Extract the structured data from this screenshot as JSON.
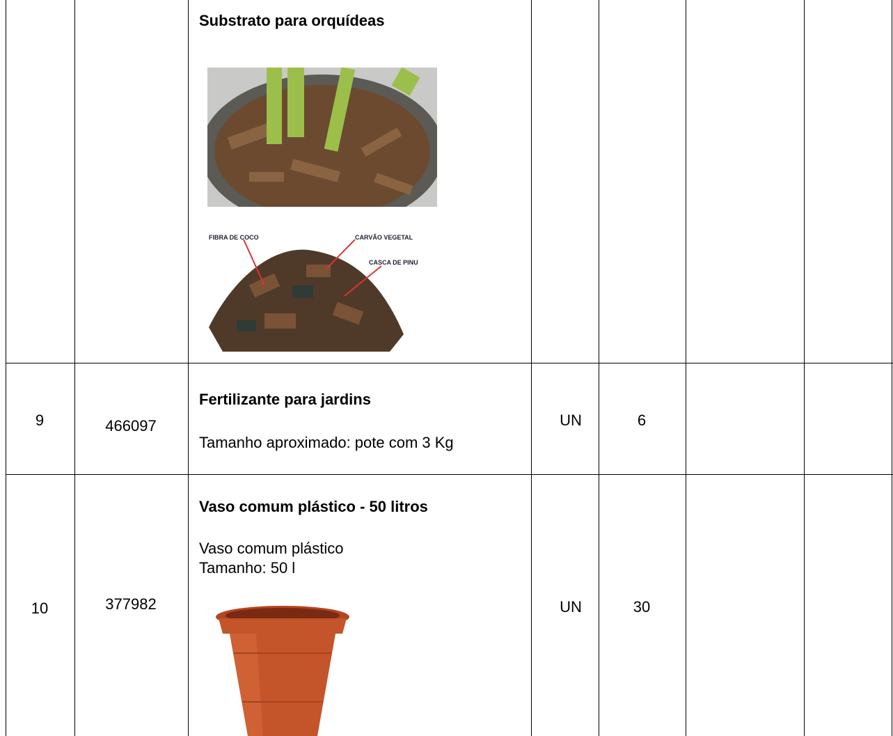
{
  "table": {
    "rows": [
      {
        "description": {
          "title": "Substrato para orquídeas",
          "image_labels": [
            "FIBRA DE COCO",
            "CARVÃO VEGETAL",
            "CASCA DE PINUS"
          ]
        }
      },
      {
        "item": "9",
        "code": "466097",
        "description": {
          "title": "Fertilizante para jardins",
          "lines": [
            "Tamanho aproximado: pote com 3 Kg"
          ]
        },
        "unit": "UN",
        "quantity": "6"
      },
      {
        "item": "10",
        "code": "377982",
        "description": {
          "title": "Vaso comum plástico - 50 litros",
          "lines": [
            "Vaso comum plástico",
            "Tamanho: 50 l"
          ]
        },
        "unit": "UN",
        "quantity": "30"
      }
    ]
  }
}
